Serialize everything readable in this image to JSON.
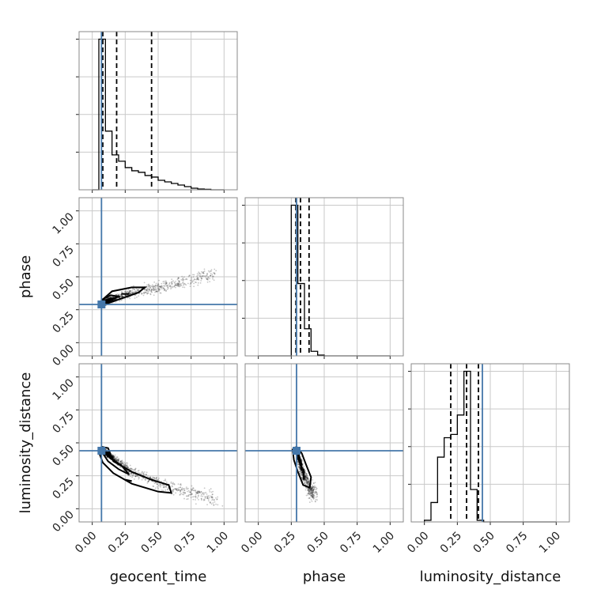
{
  "chart_data": {
    "type": "scatter",
    "parameters": [
      "geocent_time",
      "phase",
      "luminosity_distance"
    ],
    "axis_range": [
      -0.1,
      1.1
    ],
    "tick_values": [
      0.0,
      0.25,
      0.5,
      0.75,
      1.0
    ],
    "tick_labels": [
      "0.00",
      "0.25",
      "0.50",
      "0.75",
      "1.00"
    ],
    "grid": true,
    "truths": {
      "geocent_time": 0.07,
      "phase": 0.29,
      "luminosity_distance": 0.44
    },
    "histograms": {
      "geocent_time": {
        "bin_edges": [
          0.0,
          0.05,
          0.1,
          0.15,
          0.2,
          0.25,
          0.3,
          0.35,
          0.4,
          0.45,
          0.5,
          0.55,
          0.6,
          0.65,
          0.7,
          0.75,
          0.8,
          0.85,
          0.9,
          0.95,
          1.0
        ],
        "counts": [
          0,
          95,
          37,
          22,
          18,
          14,
          12,
          11,
          9,
          8,
          6,
          5,
          4,
          3,
          2,
          1,
          0.5,
          0.3,
          0,
          0
        ],
        "quantiles": [
          0.08,
          0.185,
          0.45
        ]
      },
      "phase": {
        "bin_edges": [
          0.0,
          0.05,
          0.1,
          0.15,
          0.2,
          0.25,
          0.3,
          0.35,
          0.4,
          0.45,
          0.5,
          0.55,
          0.6,
          0.65,
          0.7,
          0.75,
          0.8,
          0.85,
          0.9,
          0.95,
          1.0
        ],
        "counts": [
          0,
          0,
          0,
          0,
          0,
          100,
          48,
          18,
          3,
          0.5,
          0,
          0,
          0,
          0,
          0,
          0,
          0,
          0,
          0,
          0
        ],
        "quantiles": [
          0.285,
          0.32,
          0.385
        ]
      },
      "luminosity_distance": {
        "bin_edges": [
          0.0,
          0.05,
          0.1,
          0.15,
          0.2,
          0.25,
          0.3,
          0.35,
          0.4,
          0.45,
          0.5,
          0.55,
          0.6,
          0.65,
          0.7,
          0.75,
          0.8,
          0.85,
          0.9,
          0.95,
          1.0
        ],
        "counts": [
          1,
          12,
          40,
          52,
          54,
          66,
          93,
          20,
          1,
          0,
          0,
          0,
          0,
          0,
          0,
          0,
          0,
          0,
          0,
          0
        ],
        "quantiles": [
          0.2,
          0.32,
          0.41
        ]
      }
    },
    "scatter_panels": [
      {
        "x": "geocent_time",
        "y": "phase",
        "trend": [
          [
            0.07,
            0.3
          ],
          [
            0.3,
            0.38
          ],
          [
            0.6,
            0.44
          ],
          [
            0.92,
            0.52
          ]
        ],
        "contours": [
          [
            [
              0.06,
              0.28
            ],
            [
              0.15,
              0.31
            ],
            [
              0.35,
              0.38
            ],
            [
              0.4,
              0.42
            ],
            [
              0.3,
              0.42
            ],
            [
              0.15,
              0.39
            ],
            [
              0.06,
              0.31
            ]
          ],
          [
            [
              0.07,
              0.3
            ],
            [
              0.12,
              0.32
            ],
            [
              0.2,
              0.35
            ],
            [
              0.14,
              0.36
            ],
            [
              0.08,
              0.33
            ]
          ]
        ],
        "inner_contours": [
          [
            [
              0.22,
              0.37
            ],
            [
              0.28,
              0.37
            ]
          ]
        ]
      },
      {
        "x": "geocent_time",
        "y": "luminosity_distance",
        "trend": [
          [
            0.07,
            0.45
          ],
          [
            0.3,
            0.28
          ],
          [
            0.6,
            0.16
          ],
          [
            0.95,
            0.07
          ]
        ],
        "contours": [
          [
            [
              0.05,
              0.43
            ],
            [
              0.08,
              0.35
            ],
            [
              0.16,
              0.27
            ],
            [
              0.3,
              0.19
            ],
            [
              0.5,
              0.13
            ],
            [
              0.6,
              0.12
            ],
            [
              0.58,
              0.18
            ],
            [
              0.45,
              0.22
            ],
            [
              0.3,
              0.28
            ],
            [
              0.16,
              0.36
            ],
            [
              0.12,
              0.46
            ],
            [
              0.07,
              0.47
            ]
          ],
          [
            [
              0.08,
              0.42
            ],
            [
              0.12,
              0.36
            ],
            [
              0.2,
              0.3
            ],
            [
              0.28,
              0.26
            ],
            [
              0.22,
              0.33
            ],
            [
              0.14,
              0.38
            ],
            [
              0.1,
              0.44
            ]
          ]
        ],
        "inner_contours": [
          [
            [
              0.25,
              0.22
            ],
            [
              0.3,
              0.21
            ]
          ]
        ]
      },
      {
        "x": "phase",
        "y": "luminosity_distance",
        "trend": [
          [
            0.29,
            0.45
          ],
          [
            0.33,
            0.3
          ],
          [
            0.38,
            0.18
          ],
          [
            0.43,
            0.1
          ]
        ],
        "contours": [
          [
            [
              0.26,
              0.45
            ],
            [
              0.27,
              0.37
            ],
            [
              0.3,
              0.28
            ],
            [
              0.34,
              0.18
            ],
            [
              0.39,
              0.16
            ],
            [
              0.4,
              0.24
            ],
            [
              0.36,
              0.34
            ],
            [
              0.33,
              0.42
            ],
            [
              0.29,
              0.47
            ]
          ],
          [
            [
              0.28,
              0.44
            ],
            [
              0.3,
              0.38
            ],
            [
              0.33,
              0.33
            ],
            [
              0.31,
              0.4
            ],
            [
              0.29,
              0.45
            ]
          ]
        ],
        "inner_contours": [
          [
            [
              0.345,
              0.3
            ],
            [
              0.345,
              0.22
            ]
          ]
        ]
      }
    ]
  }
}
